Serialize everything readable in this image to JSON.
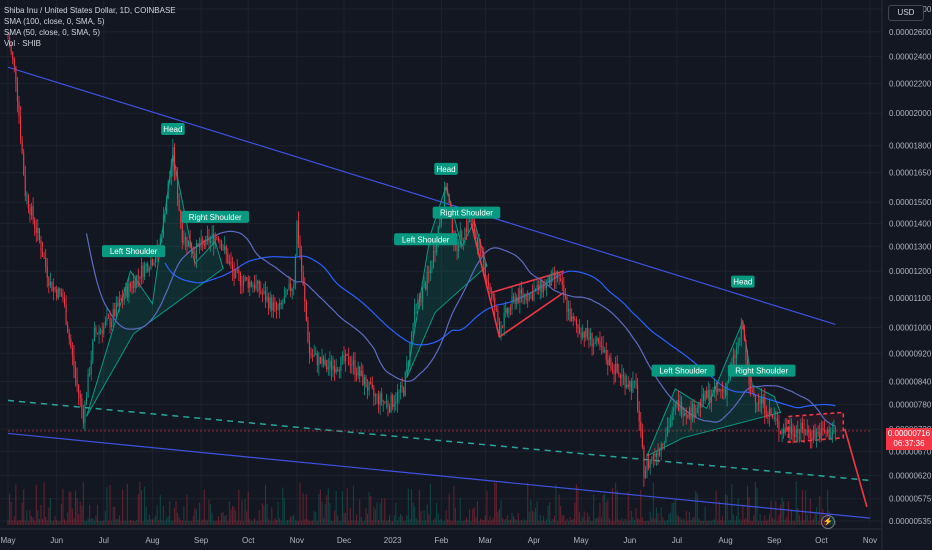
{
  "chart_data": {
    "type": "candlestick",
    "title": "Shiba Inu / United States Dollar, 1D, COINBASE",
    "currency": "USD",
    "indicators": [
      {
        "name": "SMA (100, close, 0, SMA, 5)",
        "color": "#2962ff"
      },
      {
        "name": "SMA (50, close, 0, SMA, 5)",
        "color": "#3f51b5"
      },
      {
        "name": "Vol · SHIB",
        "color": "#787b86"
      }
    ],
    "y_scale": "log",
    "y_ticks": [
      "0.00002800",
      "0.00002600",
      "0.00002400",
      "0.00002200",
      "0.00002000",
      "0.00001800",
      "0.00001650",
      "0.00001500",
      "0.00001400",
      "0.00001300",
      "0.00001200",
      "0.00001100",
      "0.00001000",
      "0.00000920",
      "0.00000840",
      "0.00000780",
      "0.00000720",
      "0.00000670",
      "0.00000620",
      "0.00000575",
      "0.00000535"
    ],
    "x_ticks": [
      "May",
      "Jun",
      "Jul",
      "Aug",
      "Sep",
      "Oct",
      "Nov",
      "Dec",
      "2023",
      "Feb",
      "Mar",
      "Apr",
      "May",
      "Jun",
      "Jul",
      "Aug",
      "Sep",
      "Oct",
      "Nov"
    ],
    "last_price": {
      "value": "0.00000716",
      "countdown": "06:37:36",
      "color": "#f23645"
    },
    "price_path": [
      [
        "2022-05-01",
        2.55e-05
      ],
      [
        "2022-05-06",
        2.25e-05
      ],
      [
        "2022-05-12",
        1.55e-05
      ],
      [
        "2022-05-20",
        1.35e-05
      ],
      [
        "2022-05-28",
        1.15e-05
      ],
      [
        "2022-06-05",
        1.1e-05
      ],
      [
        "2022-06-13",
        8.5e-06
      ],
      [
        "2022-06-18",
        7.5e-06
      ],
      [
        "2022-06-25",
        9.8e-06
      ],
      [
        "2022-07-05",
        1.02e-05
      ],
      [
        "2022-07-15",
        1.12e-05
      ],
      [
        "2022-07-25",
        1.2e-05
      ],
      [
        "2022-08-05",
        1.28e-05
      ],
      [
        "2022-08-14",
        1.75e-05
      ],
      [
        "2022-08-20",
        1.35e-05
      ],
      [
        "2022-08-28",
        1.28e-05
      ],
      [
        "2022-09-05",
        1.32e-05
      ],
      [
        "2022-09-12",
        1.35e-05
      ],
      [
        "2022-09-22",
        1.18e-05
      ],
      [
        "2022-10-05",
        1.15e-05
      ],
      [
        "2022-10-20",
        1.05e-05
      ],
      [
        "2022-10-30",
        1.16e-05
      ],
      [
        "2022-11-01",
        1.4e-05
      ],
      [
        "2022-11-09",
        9.2e-06
      ],
      [
        "2022-11-20",
        8.8e-06
      ],
      [
        "2022-12-05",
        9e-06
      ],
      [
        "2022-12-20",
        8e-06
      ],
      [
        "2022-12-30",
        7.8e-06
      ],
      [
        "2023-01-08",
        8.2e-06
      ],
      [
        "2023-01-15",
        1.05e-05
      ],
      [
        "2023-01-25",
        1.2e-05
      ],
      [
        "2023-02-04",
        1.58e-05
      ],
      [
        "2023-02-10",
        1.3e-05
      ],
      [
        "2023-02-20",
        1.42e-05
      ],
      [
        "2023-03-01",
        1.2e-05
      ],
      [
        "2023-03-10",
        1e-05
      ],
      [
        "2023-03-20",
        1.1e-05
      ],
      [
        "2023-04-01",
        1.12e-05
      ],
      [
        "2023-04-16",
        1.18e-05
      ],
      [
        "2023-04-25",
        1.02e-05
      ],
      [
        "2023-05-10",
        9.5e-06
      ],
      [
        "2023-05-25",
        8.6e-06
      ],
      [
        "2023-06-05",
        8.2e-06
      ],
      [
        "2023-06-10",
        6.3e-06
      ],
      [
        "2023-06-20",
        6.8e-06
      ],
      [
        "2023-07-01",
        7.8e-06
      ],
      [
        "2023-07-10",
        7.6e-06
      ],
      [
        "2023-07-20",
        8e-06
      ],
      [
        "2023-08-01",
        8.2e-06
      ],
      [
        "2023-08-12",
        1e-05
      ],
      [
        "2023-08-16",
        8.2e-06
      ],
      [
        "2023-08-25",
        7.8e-06
      ],
      [
        "2023-09-05",
        7.2e-06
      ],
      [
        "2023-09-15",
        7.2e-06
      ],
      [
        "2023-09-25",
        7.1e-06
      ],
      [
        "2023-10-05",
        7.1e-06
      ],
      [
        "2023-10-10",
        7.16e-06
      ]
    ],
    "annotations": [
      {
        "text": "Left Shoulder",
        "color": "#089981"
      },
      {
        "text": "Head",
        "color": "#089981"
      },
      {
        "text": "Right Shoulder",
        "color": "#089981"
      },
      {
        "text": "Left Shoulder",
        "color": "#089981"
      },
      {
        "text": "Head",
        "color": "#089981"
      },
      {
        "text": "Right Shoulder",
        "color": "#089981"
      },
      {
        "text": "Left Shoulder",
        "color": "#089981"
      },
      {
        "text": "Head",
        "color": "#089981"
      },
      {
        "text": "Right Shoulder",
        "color": "#089981"
      }
    ],
    "colors": {
      "up": "#089981",
      "down": "#f23645",
      "background": "#131722",
      "grid": "#1e222d",
      "trendline": "#3f51e0",
      "wedge": "#f23645",
      "pattern_fill": "#089981"
    }
  }
}
